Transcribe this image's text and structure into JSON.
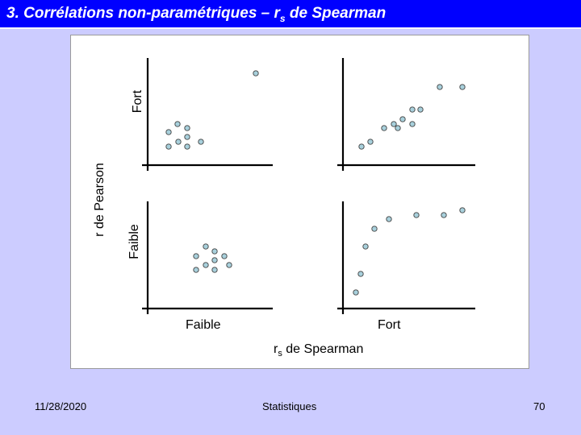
{
  "slide": {
    "title_main": "3. Corrélations non-paramétriques – r",
    "title_sub": "s",
    "title_tail": " de Spearman"
  },
  "figure": {
    "y_axis_label": "r de Pearson",
    "y_top_label": "Fort",
    "y_bottom_label": "Faible",
    "x_left_label": "Faible",
    "x_right_label": "Fort",
    "x_axis_label_main": "r",
    "x_axis_label_sub": "s",
    "x_axis_label_tail": " de Spearman",
    "point_fill": "#a8d0dc",
    "point_stroke": "#404040"
  },
  "panels": [
    {
      "name": "panel-faible-fort",
      "points": [
        [
          317,
          91
        ],
        [
          209,
          164
        ],
        [
          220,
          154
        ],
        [
          232,
          159
        ],
        [
          209,
          182
        ],
        [
          221,
          176
        ],
        [
          232,
          170
        ],
        [
          232,
          182
        ],
        [
          249,
          176
        ]
      ]
    },
    {
      "name": "panel-fort-fort",
      "points": [
        [
          448,
          182
        ],
        [
          459,
          176
        ],
        [
          476,
          159
        ],
        [
          488,
          154
        ],
        [
          493,
          159
        ],
        [
          499,
          148
        ],
        [
          511,
          136
        ],
        [
          521,
          136
        ],
        [
          511,
          154
        ],
        [
          545,
          108
        ],
        [
          573,
          108
        ]
      ]
    },
    {
      "name": "panel-faible-faible",
      "points": [
        [
          243,
          318
        ],
        [
          255,
          306
        ],
        [
          266,
          312
        ],
        [
          278,
          318
        ],
        [
          243,
          335
        ],
        [
          255,
          329
        ],
        [
          266,
          323
        ],
        [
          266,
          335
        ],
        [
          284,
          329
        ]
      ]
    },
    {
      "name": "panel-fort-faible",
      "points": [
        [
          441,
          363
        ],
        [
          447,
          340
        ],
        [
          453,
          306
        ],
        [
          464,
          284
        ],
        [
          482,
          272
        ],
        [
          516,
          267
        ],
        [
          550,
          267
        ],
        [
          573,
          261
        ]
      ]
    }
  ],
  "footer": {
    "date": "11/28/2020",
    "center": "Statistiques",
    "page": "70"
  }
}
